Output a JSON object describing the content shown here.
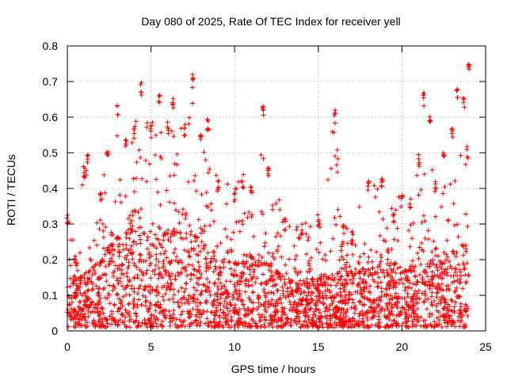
{
  "chart_data": {
    "type": "scatter",
    "title": "Day 080 of 2025, Rate Of TEC Index for receiver yell",
    "xlabel": "GPS time / hours",
    "ylabel": "ROTI / TECUs",
    "xlim": [
      0,
      25
    ],
    "ylim": [
      0,
      0.8
    ],
    "xticks": [
      0,
      5,
      10,
      15,
      20,
      25
    ],
    "yticks": [
      0,
      0.1,
      0.2,
      0.3,
      0.4,
      0.5,
      0.6,
      0.7,
      0.8
    ],
    "grid": true,
    "marker": "+",
    "marker_color": "#ff0000",
    "series": [
      {
        "name": "ROTI",
        "envelope": [
          {
            "x": 0.0,
            "y": 0.34
          },
          {
            "x": 0.5,
            "y": 0.22
          },
          {
            "x": 1.0,
            "y": 0.47
          },
          {
            "x": 1.2,
            "y": 0.5
          },
          {
            "x": 2.0,
            "y": 0.4
          },
          {
            "x": 2.4,
            "y": 0.53
          },
          {
            "x": 3.0,
            "y": 0.64
          },
          {
            "x": 3.5,
            "y": 0.55
          },
          {
            "x": 4.0,
            "y": 0.58
          },
          {
            "x": 4.4,
            "y": 0.7
          },
          {
            "x": 5.0,
            "y": 0.58
          },
          {
            "x": 5.5,
            "y": 0.67
          },
          {
            "x": 6.0,
            "y": 0.59
          },
          {
            "x": 6.3,
            "y": 0.66
          },
          {
            "x": 7.0,
            "y": 0.58
          },
          {
            "x": 7.5,
            "y": 0.72
          },
          {
            "x": 8.0,
            "y": 0.56
          },
          {
            "x": 8.4,
            "y": 0.6
          },
          {
            "x": 9.0,
            "y": 0.43
          },
          {
            "x": 10.0,
            "y": 0.4
          },
          {
            "x": 10.5,
            "y": 0.44
          },
          {
            "x": 11.0,
            "y": 0.42
          },
          {
            "x": 11.7,
            "y": 0.64
          },
          {
            "x": 12.0,
            "y": 0.46
          },
          {
            "x": 13.0,
            "y": 0.32
          },
          {
            "x": 14.0,
            "y": 0.3
          },
          {
            "x": 15.0,
            "y": 0.33
          },
          {
            "x": 16.0,
            "y": 0.62
          },
          {
            "x": 16.5,
            "y": 0.3
          },
          {
            "x": 17.0,
            "y": 0.28
          },
          {
            "x": 18.0,
            "y": 0.43
          },
          {
            "x": 18.8,
            "y": 0.44
          },
          {
            "x": 19.5,
            "y": 0.34
          },
          {
            "x": 20.0,
            "y": 0.4
          },
          {
            "x": 20.5,
            "y": 0.38
          },
          {
            "x": 21.0,
            "y": 0.5
          },
          {
            "x": 21.3,
            "y": 0.67
          },
          {
            "x": 21.7,
            "y": 0.61
          },
          {
            "x": 22.0,
            "y": 0.42
          },
          {
            "x": 22.5,
            "y": 0.5
          },
          {
            "x": 23.0,
            "y": 0.58
          },
          {
            "x": 23.3,
            "y": 0.69
          },
          {
            "x": 23.7,
            "y": 0.66
          },
          {
            "x": 24.0,
            "y": 0.75
          }
        ],
        "typical_upper": [
          {
            "x": 0.0,
            "y": 0.12
          },
          {
            "x": 1.0,
            "y": 0.15
          },
          {
            "x": 2.0,
            "y": 0.2
          },
          {
            "x": 3.0,
            "y": 0.26
          },
          {
            "x": 4.0,
            "y": 0.28
          },
          {
            "x": 5.0,
            "y": 0.26
          },
          {
            "x": 6.0,
            "y": 0.27
          },
          {
            "x": 7.0,
            "y": 0.28
          },
          {
            "x": 8.0,
            "y": 0.25
          },
          {
            "x": 9.0,
            "y": 0.2
          },
          {
            "x": 10.0,
            "y": 0.18
          },
          {
            "x": 11.0,
            "y": 0.2
          },
          {
            "x": 12.0,
            "y": 0.18
          },
          {
            "x": 13.0,
            "y": 0.14
          },
          {
            "x": 14.0,
            "y": 0.13
          },
          {
            "x": 15.0,
            "y": 0.14
          },
          {
            "x": 16.0,
            "y": 0.15
          },
          {
            "x": 17.0,
            "y": 0.16
          },
          {
            "x": 18.0,
            "y": 0.17
          },
          {
            "x": 19.0,
            "y": 0.17
          },
          {
            "x": 20.0,
            "y": 0.16
          },
          {
            "x": 21.0,
            "y": 0.18
          },
          {
            "x": 22.0,
            "y": 0.18
          },
          {
            "x": 23.0,
            "y": 0.22
          },
          {
            "x": 24.0,
            "y": 0.25
          }
        ],
        "x_range": [
          0,
          24
        ],
        "y_range": [
          0.01,
          0.75
        ]
      }
    ]
  }
}
